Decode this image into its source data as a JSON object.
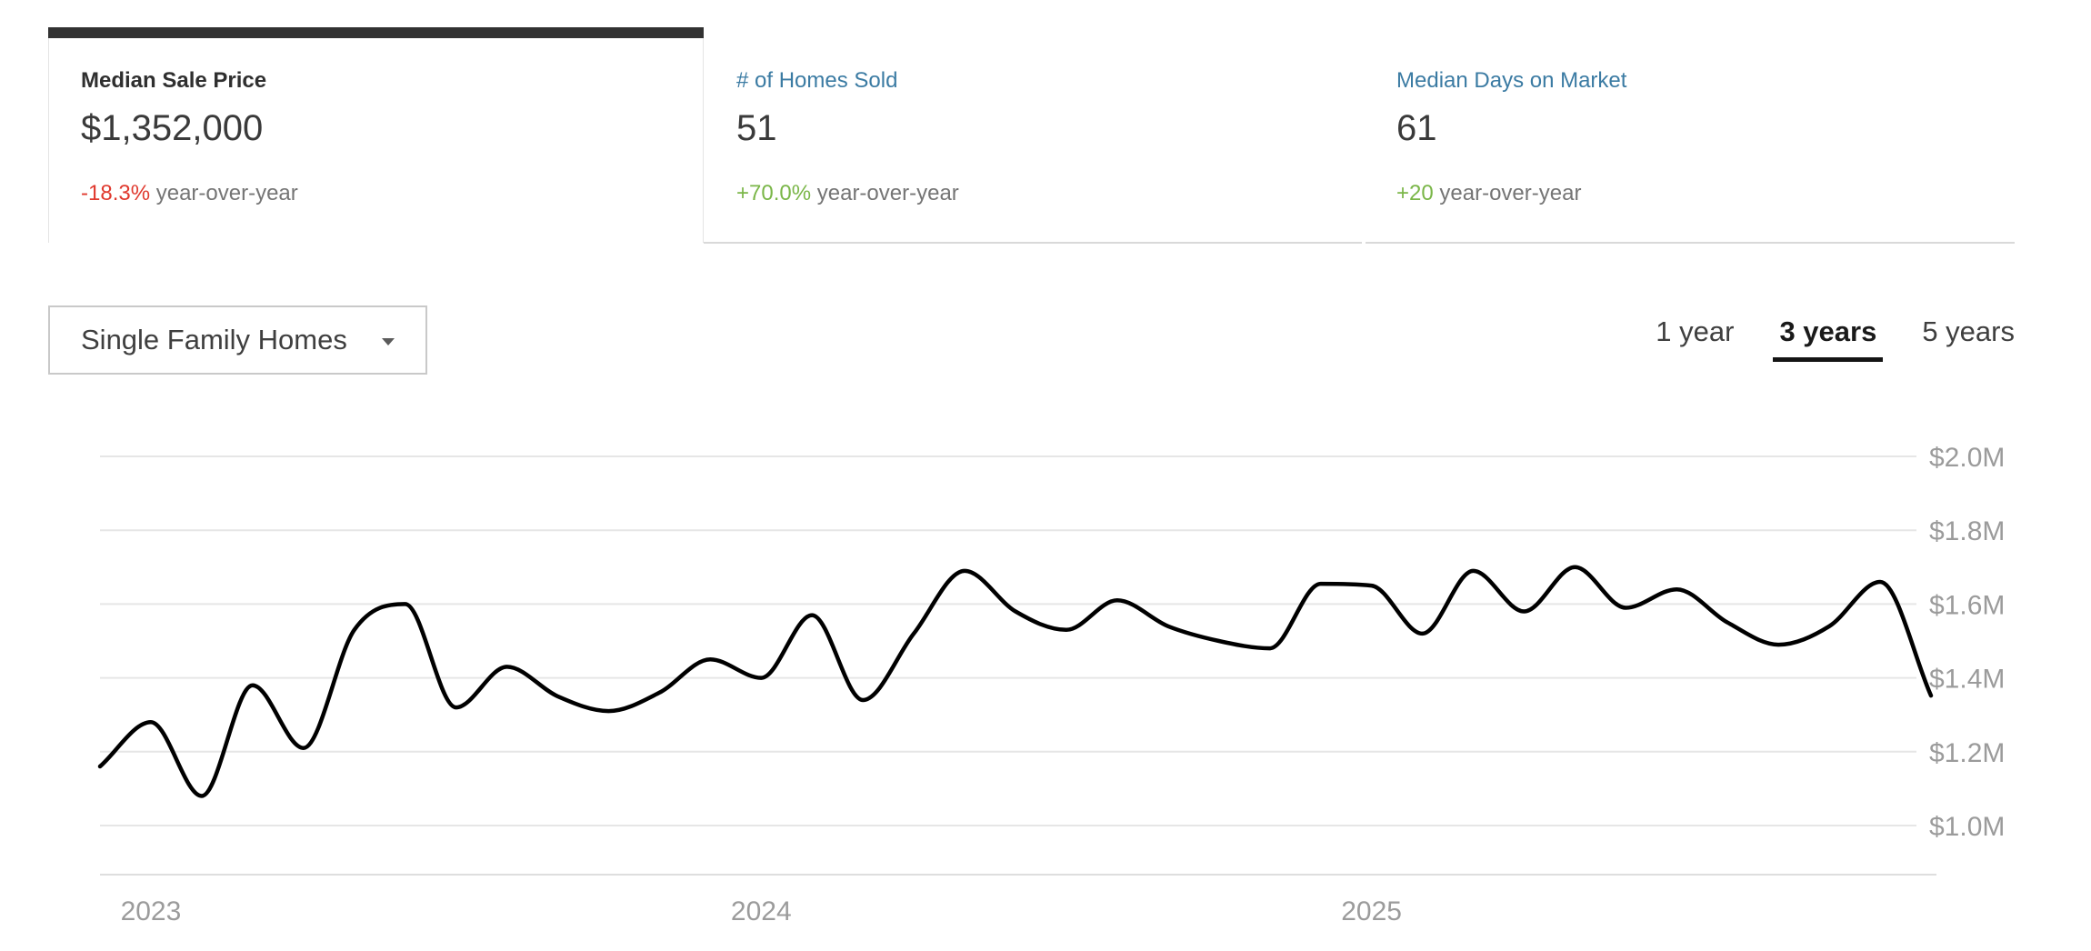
{
  "summary_tabs": [
    {
      "id": "median-sale-price",
      "label": "Median Sale Price",
      "value": "$1,352,000",
      "change": "-18.3%",
      "change_suffix": " year-over-year",
      "change_color": "#e0392e",
      "active": true
    },
    {
      "id": "homes-sold",
      "label": "# of Homes Sold",
      "value": "51",
      "change": "+70.0%",
      "change_suffix": " year-over-year",
      "change_color": "#7ab648",
      "active": false
    },
    {
      "id": "median-days-on-market",
      "label": "Median Days on Market",
      "value": "61",
      "change": "+20",
      "change_suffix": " year-over-year",
      "change_color": "#7ab648",
      "active": false
    }
  ],
  "controls": {
    "property_type_selector": {
      "value": "Single Family Homes"
    },
    "range_options": [
      {
        "label": "1 year",
        "active": false
      },
      {
        "label": "3 years",
        "active": true
      },
      {
        "label": "5 years",
        "active": false
      }
    ]
  },
  "chart_data": {
    "type": "line",
    "title": "Median Sale Price",
    "series_name": "Median Sale Price ($M)",
    "x": [
      "2022-12",
      "2023-01",
      "2023-02",
      "2023-03",
      "2023-04",
      "2023-05",
      "2023-06",
      "2023-07",
      "2023-08",
      "2023-09",
      "2023-10",
      "2023-11",
      "2023-12",
      "2024-01",
      "2024-02",
      "2024-03",
      "2024-04",
      "2024-05",
      "2024-06",
      "2024-07",
      "2024-08",
      "2024-09",
      "2024-10",
      "2024-11",
      "2024-12",
      "2025-01",
      "2025-02",
      "2025-03",
      "2025-04",
      "2025-05",
      "2025-06",
      "2025-07",
      "2025-08",
      "2025-09",
      "2025-10",
      "2025-11",
      "2025-12"
    ],
    "values": [
      1.16,
      1.28,
      1.08,
      1.38,
      1.21,
      1.53,
      1.6,
      1.32,
      1.43,
      1.35,
      1.31,
      1.36,
      1.45,
      1.4,
      1.57,
      1.34,
      1.52,
      1.69,
      1.58,
      1.53,
      1.61,
      1.54,
      1.5,
      1.48,
      1.655,
      1.65,
      1.52,
      1.69,
      1.58,
      1.7,
      1.59,
      1.64,
      1.55,
      1.49,
      1.54,
      1.66,
      1.352
    ],
    "ylim": [
      1.0,
      2.0
    ],
    "yticks": [
      {
        "label": "$2.0M",
        "value": 2.0
      },
      {
        "label": "$1.8M",
        "value": 1.8
      },
      {
        "label": "$1.6M",
        "value": 1.6
      },
      {
        "label": "$1.4M",
        "value": 1.4
      },
      {
        "label": "$1.2M",
        "value": 1.2
      },
      {
        "label": "$1.0M",
        "value": 1.0
      }
    ],
    "xticks": [
      {
        "label": "2023",
        "index": 1
      },
      {
        "label": "2024",
        "index": 13
      },
      {
        "label": "2025",
        "index": 25
      }
    ],
    "grid": true,
    "legend": false,
    "line_color": "#000000",
    "grid_color": "#e6e6e6",
    "axis_line_color": "#dedede",
    "axis_label_color": "#9b9b9b"
  },
  "colors": {
    "accent_blue": "#3b7ba3",
    "negative": "#e0392e",
    "positive": "#7ab648",
    "muted_text": "#757575",
    "active_tab_bar": "#323232"
  }
}
